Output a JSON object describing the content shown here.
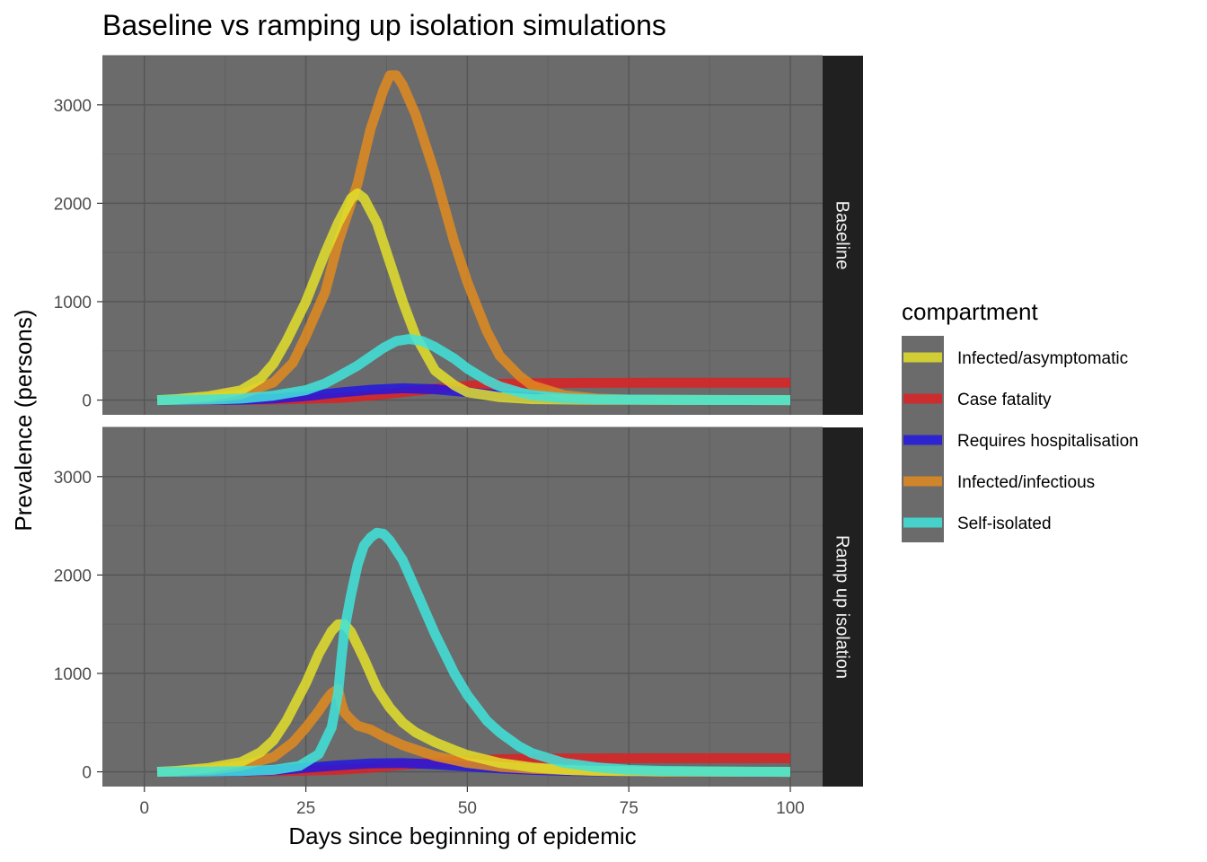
{
  "chart_data": {
    "type": "line",
    "title": "Baseline vs ramping up isolation simulations",
    "xlabel": "Days since beginning of epidemic",
    "ylabel": "Prevalence (persons)",
    "xlim": [
      -6.5,
      105
    ],
    "ylim": [
      -150,
      3500
    ],
    "x_ticks": [
      0,
      25,
      50,
      75,
      100
    ],
    "y_ticks": [
      0,
      1000,
      2000,
      3000
    ],
    "grid": true,
    "theme": "dark panel",
    "facet_colors": {
      "panel": "#6b6b6b",
      "strip": "#202020",
      "grid_major": "#555555",
      "grid_minor": "#616161"
    },
    "legend": {
      "title": "compartment",
      "position": "right",
      "entries": [
        {
          "label": "Infected/asymptomatic",
          "color": "#e2df2a"
        },
        {
          "label": "Case fatality",
          "color": "#dc2225"
        },
        {
          "label": "Requires hospitalisation",
          "color": "#2216e0"
        },
        {
          "label": "Infected/infectious",
          "color": "#e0891f"
        },
        {
          "label": "Self-isolated",
          "color": "#3fe4dc"
        }
      ]
    },
    "facets": [
      {
        "label": "Baseline",
        "series": [
          {
            "name": "Case fatality",
            "color": "#dc2225",
            "points": [
              [
                2,
                0
              ],
              [
                20,
                5
              ],
              [
                30,
                20
              ],
              [
                35,
                45
              ],
              [
                40,
                80
              ],
              [
                45,
                115
              ],
              [
                50,
                145
              ],
              [
                55,
                165
              ],
              [
                60,
                172
              ],
              [
                70,
                175
              ],
              [
                80,
                176
              ],
              [
                100,
                176
              ]
            ]
          },
          {
            "name": "Requires hospitalisation",
            "color": "#2216e0",
            "points": [
              [
                2,
                0
              ],
              [
                15,
                4
              ],
              [
                20,
                15
              ],
              [
                25,
                40
              ],
              [
                30,
                75
              ],
              [
                35,
                105
              ],
              [
                40,
                120
              ],
              [
                45,
                110
              ],
              [
                50,
                80
              ],
              [
                55,
                50
              ],
              [
                60,
                25
              ],
              [
                65,
                12
              ],
              [
                70,
                5
              ],
              [
                80,
                1
              ],
              [
                100,
                0
              ]
            ]
          },
          {
            "name": "Infected/infectious",
            "color": "#e0891f",
            "points": [
              [
                2,
                0
              ],
              [
                5,
                5
              ],
              [
                10,
                20
              ],
              [
                15,
                60
              ],
              [
                20,
                180
              ],
              [
                23,
                380
              ],
              [
                25,
                650
              ],
              [
                28,
                1100
              ],
              [
                30,
                1600
              ],
              [
                33,
                2200
              ],
              [
                35,
                2750
              ],
              [
                37,
                3150
              ],
              [
                38,
                3300
              ],
              [
                39,
                3300
              ],
              [
                40,
                3200
              ],
              [
                42,
                2900
              ],
              [
                45,
                2300
              ],
              [
                48,
                1600
              ],
              [
                50,
                1200
              ],
              [
                53,
                700
              ],
              [
                55,
                450
              ],
              [
                58,
                250
              ],
              [
                60,
                150
              ],
              [
                65,
                50
              ],
              [
                70,
                15
              ],
              [
                75,
                5
              ],
              [
                80,
                2
              ],
              [
                100,
                0
              ]
            ]
          },
          {
            "name": "Infected/asymptomatic",
            "color": "#e2df2a",
            "points": [
              [
                2,
                0
              ],
              [
                5,
                10
              ],
              [
                10,
                40
              ],
              [
                15,
                100
              ],
              [
                18,
                220
              ],
              [
                20,
                370
              ],
              [
                22,
                600
              ],
              [
                25,
                1000
              ],
              [
                28,
                1500
              ],
              [
                30,
                1800
              ],
              [
                32,
                2050
              ],
              [
                33,
                2100
              ],
              [
                34,
                2050
              ],
              [
                36,
                1800
              ],
              [
                38,
                1400
              ],
              [
                40,
                1000
              ],
              [
                42,
                650
              ],
              [
                45,
                300
              ],
              [
                48,
                150
              ],
              [
                50,
                80
              ],
              [
                55,
                30
              ],
              [
                60,
                10
              ],
              [
                70,
                2
              ],
              [
                100,
                0
              ]
            ]
          },
          {
            "name": "Self-isolated",
            "color": "#3fe4dc",
            "points": [
              [
                2,
                0
              ],
              [
                10,
                5
              ],
              [
                15,
                15
              ],
              [
                20,
                45
              ],
              [
                25,
                100
              ],
              [
                28,
                170
              ],
              [
                30,
                240
              ],
              [
                33,
                350
              ],
              [
                35,
                440
              ],
              [
                37,
                530
              ],
              [
                39,
                600
              ],
              [
                41,
                620
              ],
              [
                43,
                600
              ],
              [
                45,
                540
              ],
              [
                48,
                420
              ],
              [
                50,
                320
              ],
              [
                53,
                200
              ],
              [
                55,
                140
              ],
              [
                58,
                80
              ],
              [
                60,
                50
              ],
              [
                65,
                20
              ],
              [
                70,
                8
              ],
              [
                80,
                2
              ],
              [
                100,
                0
              ]
            ]
          }
        ]
      },
      {
        "label": "Ramp up isolation",
        "series": [
          {
            "name": "Case fatality",
            "color": "#dc2225",
            "points": [
              [
                2,
                0
              ],
              [
                20,
                5
              ],
              [
                30,
                20
              ],
              [
                35,
                40
              ],
              [
                40,
                70
              ],
              [
                45,
                95
              ],
              [
                50,
                115
              ],
              [
                55,
                128
              ],
              [
                60,
                134
              ],
              [
                70,
                137
              ],
              [
                80,
                138
              ],
              [
                100,
                138
              ]
            ]
          },
          {
            "name": "Requires hospitalisation",
            "color": "#2216e0",
            "points": [
              [
                2,
                0
              ],
              [
                15,
                5
              ],
              [
                20,
                15
              ],
              [
                25,
                40
              ],
              [
                30,
                65
              ],
              [
                35,
                85
              ],
              [
                40,
                90
              ],
              [
                45,
                75
              ],
              [
                50,
                55
              ],
              [
                55,
                35
              ],
              [
                60,
                20
              ],
              [
                65,
                10
              ],
              [
                70,
                5
              ],
              [
                80,
                1
              ],
              [
                100,
                0
              ]
            ]
          },
          {
            "name": "Infected/infectious",
            "color": "#e0891f",
            "points": [
              [
                2,
                0
              ],
              [
                5,
                5
              ],
              [
                10,
                20
              ],
              [
                15,
                60
              ],
              [
                20,
                150
              ],
              [
                23,
                300
              ],
              [
                25,
                450
              ],
              [
                27,
                620
              ],
              [
                28,
                720
              ],
              [
                29,
                800
              ],
              [
                30,
                840
              ],
              [
                30.5,
                700
              ],
              [
                31,
                600
              ],
              [
                32,
                530
              ],
              [
                33,
                470
              ],
              [
                35,
                430
              ],
              [
                37,
                360
              ],
              [
                40,
                270
              ],
              [
                45,
                160
              ],
              [
                50,
                90
              ],
              [
                55,
                50
              ],
              [
                60,
                30
              ],
              [
                70,
                10
              ],
              [
                80,
                3
              ],
              [
                100,
                0
              ]
            ]
          },
          {
            "name": "Infected/asymptomatic",
            "color": "#e2df2a",
            "points": [
              [
                2,
                0
              ],
              [
                5,
                10
              ],
              [
                10,
                40
              ],
              [
                15,
                100
              ],
              [
                18,
                200
              ],
              [
                20,
                320
              ],
              [
                22,
                520
              ],
              [
                25,
                900
              ],
              [
                27,
                1200
              ],
              [
                29,
                1430
              ],
              [
                30,
                1500
              ],
              [
                31,
                1500
              ],
              [
                32,
                1420
              ],
              [
                34,
                1150
              ],
              [
                36,
                850
              ],
              [
                38,
                650
              ],
              [
                40,
                500
              ],
              [
                42,
                400
              ],
              [
                45,
                300
              ],
              [
                48,
                220
              ],
              [
                50,
                170
              ],
              [
                55,
                90
              ],
              [
                60,
                45
              ],
              [
                65,
                20
              ],
              [
                70,
                10
              ],
              [
                80,
                3
              ],
              [
                100,
                0
              ]
            ]
          },
          {
            "name": "Self-isolated",
            "color": "#3fe4dc",
            "points": [
              [
                2,
                0
              ],
              [
                10,
                3
              ],
              [
                15,
                8
              ],
              [
                20,
                20
              ],
              [
                24,
                60
              ],
              [
                27,
                180
              ],
              [
                29,
                450
              ],
              [
                30,
                800
              ],
              [
                30.5,
                1150
              ],
              [
                31,
                1450
              ],
              [
                32,
                1800
              ],
              [
                33,
                2100
              ],
              [
                34,
                2300
              ],
              [
                35,
                2380
              ],
              [
                36,
                2430
              ],
              [
                37,
                2420
              ],
              [
                38,
                2350
              ],
              [
                40,
                2150
              ],
              [
                42,
                1850
              ],
              [
                45,
                1400
              ],
              [
                48,
                1000
              ],
              [
                50,
                780
              ],
              [
                53,
                520
              ],
              [
                55,
                400
              ],
              [
                58,
                260
              ],
              [
                60,
                190
              ],
              [
                65,
                90
              ],
              [
                70,
                45
              ],
              [
                75,
                20
              ],
              [
                80,
                10
              ],
              [
                90,
                3
              ],
              [
                100,
                0
              ]
            ]
          }
        ]
      }
    ]
  }
}
